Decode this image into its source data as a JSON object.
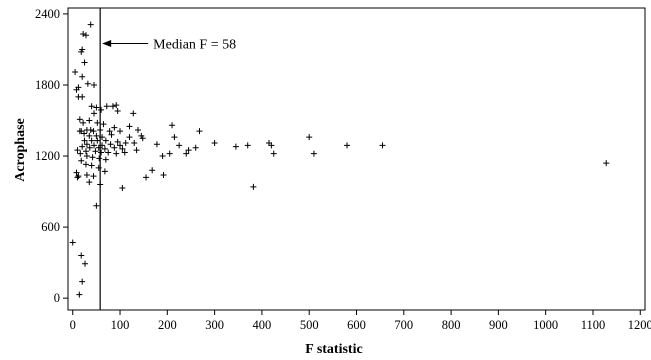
{
  "chart_data": {
    "type": "scatter",
    "xlabel": "F statistic",
    "ylabel": "Acrophase",
    "xlim": [
      -10,
      1210
    ],
    "ylim": [
      -100,
      2450
    ],
    "xticks": [
      0,
      100,
      200,
      300,
      400,
      500,
      600,
      700,
      800,
      900,
      1000,
      1100,
      1200
    ],
    "xtick_labels": [
      "0",
      "100",
      "200",
      "300",
      "400",
      "500",
      "600",
      "700",
      "800",
      "900",
      "1000",
      "1100",
      "1200"
    ],
    "yticks": [
      0,
      600,
      1200,
      1800,
      2400
    ],
    "ytick_labels": [
      "0",
      "600",
      "1200",
      "1800",
      "2400"
    ],
    "grid": false,
    "marker": "+",
    "reference_line": {
      "x": 58
    },
    "annotation": {
      "text": "Median F = 58",
      "target": {
        "x": 58,
        "y": 2150
      }
    },
    "points": [
      {
        "x": 38,
        "y": 2310
      },
      {
        "x": 22,
        "y": 2230
      },
      {
        "x": 28,
        "y": 2220
      },
      {
        "x": 20,
        "y": 2100
      },
      {
        "x": 18,
        "y": 2080
      },
      {
        "x": 25,
        "y": 1990
      },
      {
        "x": 5,
        "y": 1910
      },
      {
        "x": 20,
        "y": 1870
      },
      {
        "x": 12,
        "y": 1780
      },
      {
        "x": 8,
        "y": 1760
      },
      {
        "x": 32,
        "y": 1810
      },
      {
        "x": 45,
        "y": 1800
      },
      {
        "x": 12,
        "y": 1700
      },
      {
        "x": 20,
        "y": 1700
      },
      {
        "x": 40,
        "y": 1620
      },
      {
        "x": 50,
        "y": 1610
      },
      {
        "x": 45,
        "y": 1560
      },
      {
        "x": 60,
        "y": 1590
      },
      {
        "x": 72,
        "y": 1620
      },
      {
        "x": 85,
        "y": 1620
      },
      {
        "x": 92,
        "y": 1630
      },
      {
        "x": 95,
        "y": 1580
      },
      {
        "x": 128,
        "y": 1560
      },
      {
        "x": 15,
        "y": 1510
      },
      {
        "x": 22,
        "y": 1480
      },
      {
        "x": 35,
        "y": 1500
      },
      {
        "x": 52,
        "y": 1480
      },
      {
        "x": 65,
        "y": 1470
      },
      {
        "x": 88,
        "y": 1440
      },
      {
        "x": 120,
        "y": 1450
      },
      {
        "x": 138,
        "y": 1420
      },
      {
        "x": 15,
        "y": 1410
      },
      {
        "x": 18,
        "y": 1410
      },
      {
        "x": 30,
        "y": 1420
      },
      {
        "x": 38,
        "y": 1420
      },
      {
        "x": 44,
        "y": 1410
      },
      {
        "x": 58,
        "y": 1420
      },
      {
        "x": 78,
        "y": 1410
      },
      {
        "x": 100,
        "y": 1410
      },
      {
        "x": 24,
        "y": 1390
      },
      {
        "x": 35,
        "y": 1370
      },
      {
        "x": 50,
        "y": 1370
      },
      {
        "x": 62,
        "y": 1360
      },
      {
        "x": 82,
        "y": 1380
      },
      {
        "x": 120,
        "y": 1360
      },
      {
        "x": 145,
        "y": 1370
      },
      {
        "x": 148,
        "y": 1350
      },
      {
        "x": 25,
        "y": 1330
      },
      {
        "x": 40,
        "y": 1330
      },
      {
        "x": 52,
        "y": 1330
      },
      {
        "x": 70,
        "y": 1330
      },
      {
        "x": 95,
        "y": 1320
      },
      {
        "x": 112,
        "y": 1310
      },
      {
        "x": 130,
        "y": 1310
      },
      {
        "x": 30,
        "y": 1300
      },
      {
        "x": 45,
        "y": 1290
      },
      {
        "x": 62,
        "y": 1290
      },
      {
        "x": 80,
        "y": 1300
      },
      {
        "x": 100,
        "y": 1290
      },
      {
        "x": 20,
        "y": 1280
      },
      {
        "x": 36,
        "y": 1270
      },
      {
        "x": 55,
        "y": 1270
      },
      {
        "x": 68,
        "y": 1260
      },
      {
        "x": 88,
        "y": 1270
      },
      {
        "x": 105,
        "y": 1260
      },
      {
        "x": 135,
        "y": 1250
      },
      {
        "x": 10,
        "y": 1250
      },
      {
        "x": 28,
        "y": 1240
      },
      {
        "x": 48,
        "y": 1240
      },
      {
        "x": 60,
        "y": 1230
      },
      {
        "x": 75,
        "y": 1230
      },
      {
        "x": 92,
        "y": 1220
      },
      {
        "x": 110,
        "y": 1230
      },
      {
        "x": 16,
        "y": 1220
      },
      {
        "x": 30,
        "y": 1200
      },
      {
        "x": 42,
        "y": 1190
      },
      {
        "x": 56,
        "y": 1180
      },
      {
        "x": 70,
        "y": 1170
      },
      {
        "x": 18,
        "y": 1160
      },
      {
        "x": 28,
        "y": 1130
      },
      {
        "x": 40,
        "y": 1120
      },
      {
        "x": 55,
        "y": 1100
      },
      {
        "x": 68,
        "y": 1070
      },
      {
        "x": 8,
        "y": 1060
      },
      {
        "x": 12,
        "y": 1030
      },
      {
        "x": 30,
        "y": 1040
      },
      {
        "x": 44,
        "y": 1030
      },
      {
        "x": 10,
        "y": 1020
      },
      {
        "x": 35,
        "y": 980
      },
      {
        "x": 58,
        "y": 960
      },
      {
        "x": 105,
        "y": 930
      },
      {
        "x": 50,
        "y": 780
      },
      {
        "x": 210,
        "y": 1460
      },
      {
        "x": 268,
        "y": 1410
      },
      {
        "x": 215,
        "y": 1360
      },
      {
        "x": 245,
        "y": 1250
      },
      {
        "x": 205,
        "y": 1220
      },
      {
        "x": 225,
        "y": 1290
      },
      {
        "x": 240,
        "y": 1220
      },
      {
        "x": 260,
        "y": 1270
      },
      {
        "x": 300,
        "y": 1310
      },
      {
        "x": 345,
        "y": 1280
      },
      {
        "x": 370,
        "y": 1290
      },
      {
        "x": 415,
        "y": 1310
      },
      {
        "x": 420,
        "y": 1290
      },
      {
        "x": 425,
        "y": 1220
      },
      {
        "x": 500,
        "y": 1360
      },
      {
        "x": 510,
        "y": 1220
      },
      {
        "x": 580,
        "y": 1290
      },
      {
        "x": 655,
        "y": 1290
      },
      {
        "x": 382,
        "y": 940
      },
      {
        "x": 1128,
        "y": 1140
      },
      {
        "x": 168,
        "y": 1080
      },
      {
        "x": 155,
        "y": 1020
      },
      {
        "x": 192,
        "y": 1040
      },
      {
        "x": 178,
        "y": 1300
      },
      {
        "x": 190,
        "y": 1200
      },
      {
        "x": 0,
        "y": 470
      },
      {
        "x": 18,
        "y": 360
      },
      {
        "x": 26,
        "y": 290
      },
      {
        "x": 20,
        "y": 140
      },
      {
        "x": 14,
        "y": 30
      }
    ]
  }
}
